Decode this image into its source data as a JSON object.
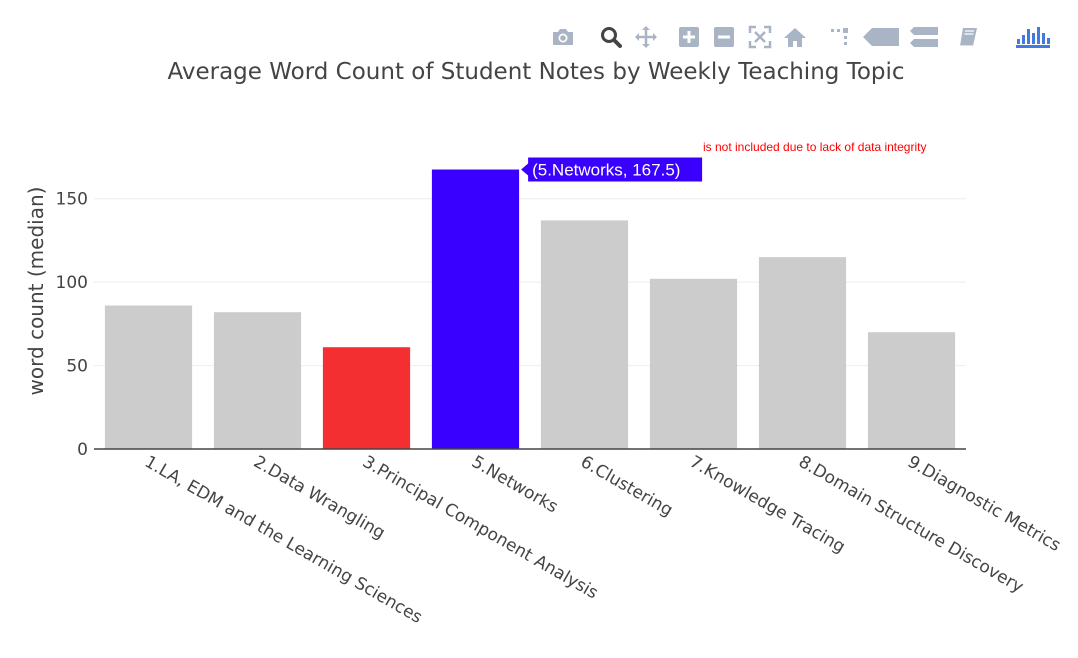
{
  "modebar": {
    "buttons": [
      {
        "name": "camera-icon"
      },
      {
        "name": "zoom-icon"
      },
      {
        "name": "pan-icon"
      },
      {
        "name": "zoom-in-icon"
      },
      {
        "name": "zoom-out-icon"
      },
      {
        "name": "autoscale-icon"
      },
      {
        "name": "home-icon"
      },
      {
        "name": "spike-lines-icon"
      },
      {
        "name": "hover-closest-icon"
      },
      {
        "name": "hover-compare-icon"
      },
      {
        "name": "book-icon"
      },
      {
        "name": "plotly-logo-icon"
      }
    ],
    "icon_color": "#a9b4c5",
    "active_color": "#444444",
    "logo_color": "#447adb"
  },
  "chart_data": {
    "type": "bar",
    "title": "Average Word Count of Student Notes by Weekly Teaching Topic",
    "xlabel": "",
    "ylabel": "word count (median)",
    "ylim": [
      0,
      175
    ],
    "yticks": [
      0,
      50,
      100,
      150
    ],
    "ytick_labels": [
      "0",
      "50",
      "100",
      "150"
    ],
    "grid": true,
    "categories": [
      "1.LA, EDM and the Learning Sciences",
      "2.Data Wrangling",
      "3.Principal Component Analysis",
      "5.Networks",
      "6.Clustering",
      "7.Knowledge Tracing",
      "8.Domain Structure Discovery",
      "9.Diagnostic Metrics"
    ],
    "values": [
      86,
      82,
      61,
      167.5,
      137,
      102,
      115,
      70
    ],
    "colors": [
      "#cccccc",
      "#cccccc",
      "#f32f31",
      "#3a00ff",
      "#cccccc",
      "#cccccc",
      "#cccccc",
      "#cccccc"
    ],
    "annotation": {
      "text": "is not included due to lack of data integrity",
      "color": "#ff0000"
    },
    "hover": {
      "index": 3,
      "text": "(5.Networks, 167.5)",
      "color": "#3a00ff"
    }
  }
}
